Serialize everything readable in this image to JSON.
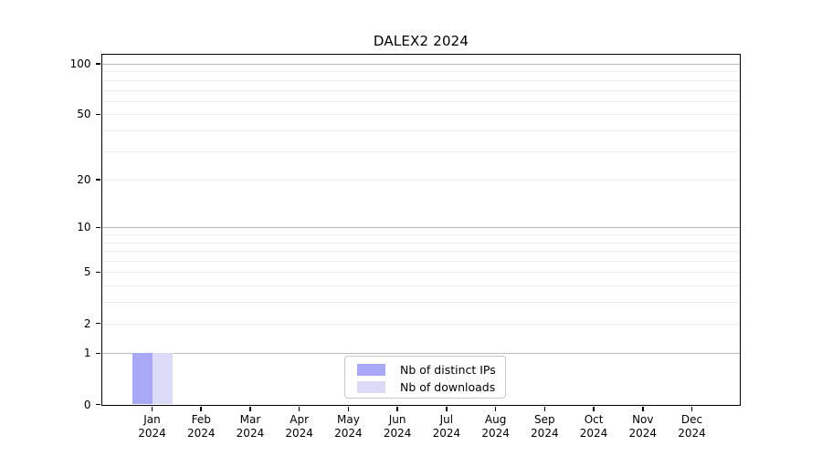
{
  "title": "DALEX2 2024",
  "colors": {
    "distinct_ips": "#a8a8f6",
    "downloads": "#dbdbf8",
    "grid_major": "#bababa",
    "grid_minor": "#ededed",
    "axis": "#000000",
    "legend_border": "#c9c9c9",
    "background": "#ffffff"
  },
  "legend": {
    "position": "bottom-center",
    "items": [
      {
        "label": "Nb of distinct IPs",
        "color": "#a8a8f6"
      },
      {
        "label": "Nb of downloads",
        "color": "#dbdbf8"
      }
    ]
  },
  "chart_data": {
    "type": "bar",
    "title": "DALEX2 2024",
    "categories": [
      "Jan",
      "Feb",
      "Mar",
      "Apr",
      "May",
      "Jun",
      "Jul",
      "Aug",
      "Sep",
      "Oct",
      "Nov",
      "Dec"
    ],
    "year": "2024",
    "series": [
      {
        "name": "Nb of distinct IPs",
        "color": "#a8a8f6",
        "values": [
          1,
          0,
          0,
          0,
          0,
          0,
          0,
          0,
          0,
          0,
          0,
          0
        ]
      },
      {
        "name": "Nb of downloads",
        "color": "#dbdbf8",
        "values": [
          1,
          0,
          0,
          0,
          0,
          0,
          0,
          0,
          0,
          0,
          0,
          0
        ]
      }
    ],
    "xlabel": "",
    "ylabel": "",
    "y_scale": "log10(1+v)",
    "y_axis_top": 114,
    "y_ticks": [
      0,
      1,
      2,
      5,
      10,
      20,
      50,
      100
    ],
    "grid_major": [
      1,
      10,
      100
    ],
    "grid_minor": [
      2,
      3,
      4,
      5,
      6,
      7,
      8,
      9,
      20,
      30,
      40,
      50,
      60,
      70,
      80,
      90
    ],
    "grid": true,
    "legend_position": "bottom-center"
  }
}
